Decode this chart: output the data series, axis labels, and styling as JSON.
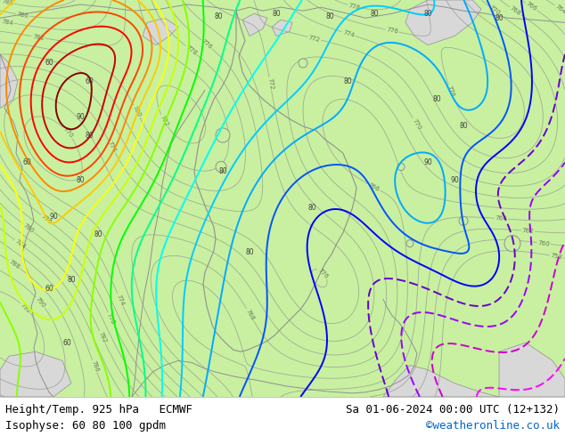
{
  "title_left_line1": "Height/Temp. 925 hPa   ECMWF",
  "title_left_line2": "Isophyse: 60 80 100 gpdm",
  "title_right_line1": "Sa 01-06-2024 00:00 UTC (12+132)",
  "title_right_line2": "©weatheronline.co.uk",
  "title_right_line2_color": "#0066cc",
  "bg_color": "#c8f0a0",
  "sea_color": "#d8d8d8",
  "footer_bg": "#ffffff",
  "text_color": "#000000",
  "font_size": 9,
  "fig_width": 6.34,
  "fig_height": 4.9,
  "dpi": 100,
  "temp_colors": [
    "#ff00ff",
    "#cc00cc",
    "#9900ff",
    "#6600cc",
    "#0000ff",
    "#0055ff",
    "#00aaff",
    "#00ccff",
    "#00ffee",
    "#00ff88",
    "#00ff00",
    "#88ff00",
    "#ccff00",
    "#ffff00",
    "#ffcc00",
    "#ff8800",
    "#ff4400",
    "#ff0000",
    "#cc0000",
    "#880000"
  ],
  "gray_border_color": "#909090",
  "dark_contour_color": "#404040"
}
